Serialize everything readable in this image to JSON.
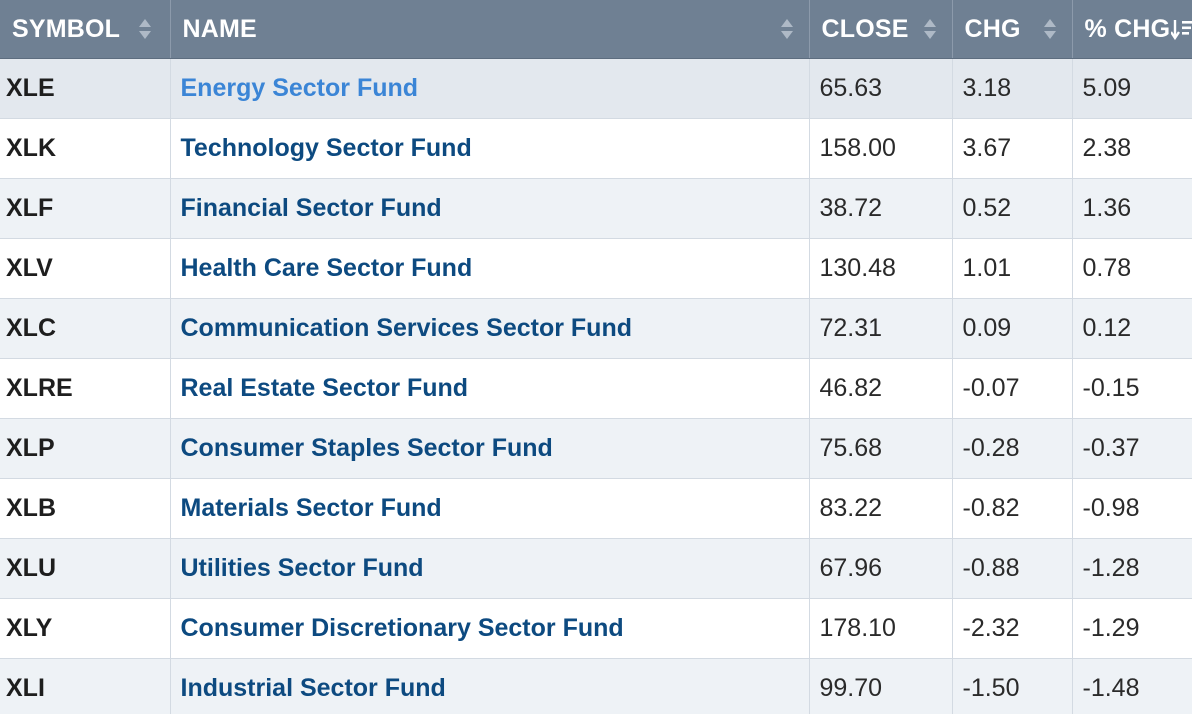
{
  "table": {
    "headers": {
      "symbol": "SYMBOL",
      "name": "NAME",
      "close": "CLOSE",
      "chg": "CHG",
      "pct_chg": "% CHG"
    },
    "icons": {
      "sort": "sort-icon",
      "sort_desc": "sort-descending-icon"
    },
    "colors": {
      "header_bg": "#6f8093",
      "link": "#0d4a80",
      "link_hover": "#3b85d6",
      "row_alt": "#eef2f6"
    },
    "rows": [
      {
        "symbol": "XLE",
        "name": "Energy Sector Fund",
        "close": "65.63",
        "chg": "3.18",
        "pct": "5.09"
      },
      {
        "symbol": "XLK",
        "name": "Technology Sector Fund",
        "close": "158.00",
        "chg": "3.67",
        "pct": "2.38"
      },
      {
        "symbol": "XLF",
        "name": "Financial Sector Fund",
        "close": "38.72",
        "chg": "0.52",
        "pct": "1.36"
      },
      {
        "symbol": "XLV",
        "name": "Health Care Sector Fund",
        "close": "130.48",
        "chg": "1.01",
        "pct": "0.78"
      },
      {
        "symbol": "XLC",
        "name": "Communication Services Sector Fund",
        "close": "72.31",
        "chg": "0.09",
        "pct": "0.12"
      },
      {
        "symbol": "XLRE",
        "name": "Real Estate Sector Fund",
        "close": "46.82",
        "chg": "-0.07",
        "pct": "-0.15"
      },
      {
        "symbol": "XLP",
        "name": "Consumer Staples Sector Fund",
        "close": "75.68",
        "chg": "-0.28",
        "pct": "-0.37"
      },
      {
        "symbol": "XLB",
        "name": "Materials Sector Fund",
        "close": "83.22",
        "chg": "-0.82",
        "pct": "-0.98"
      },
      {
        "symbol": "XLU",
        "name": "Utilities Sector Fund",
        "close": "67.96",
        "chg": "-0.88",
        "pct": "-1.28"
      },
      {
        "symbol": "XLY",
        "name": "Consumer Discretionary Sector Fund",
        "close": "178.10",
        "chg": "-2.32",
        "pct": "-1.29"
      },
      {
        "symbol": "XLI",
        "name": "Industrial Sector Fund",
        "close": "99.70",
        "chg": "-1.50",
        "pct": "-1.48"
      }
    ]
  }
}
